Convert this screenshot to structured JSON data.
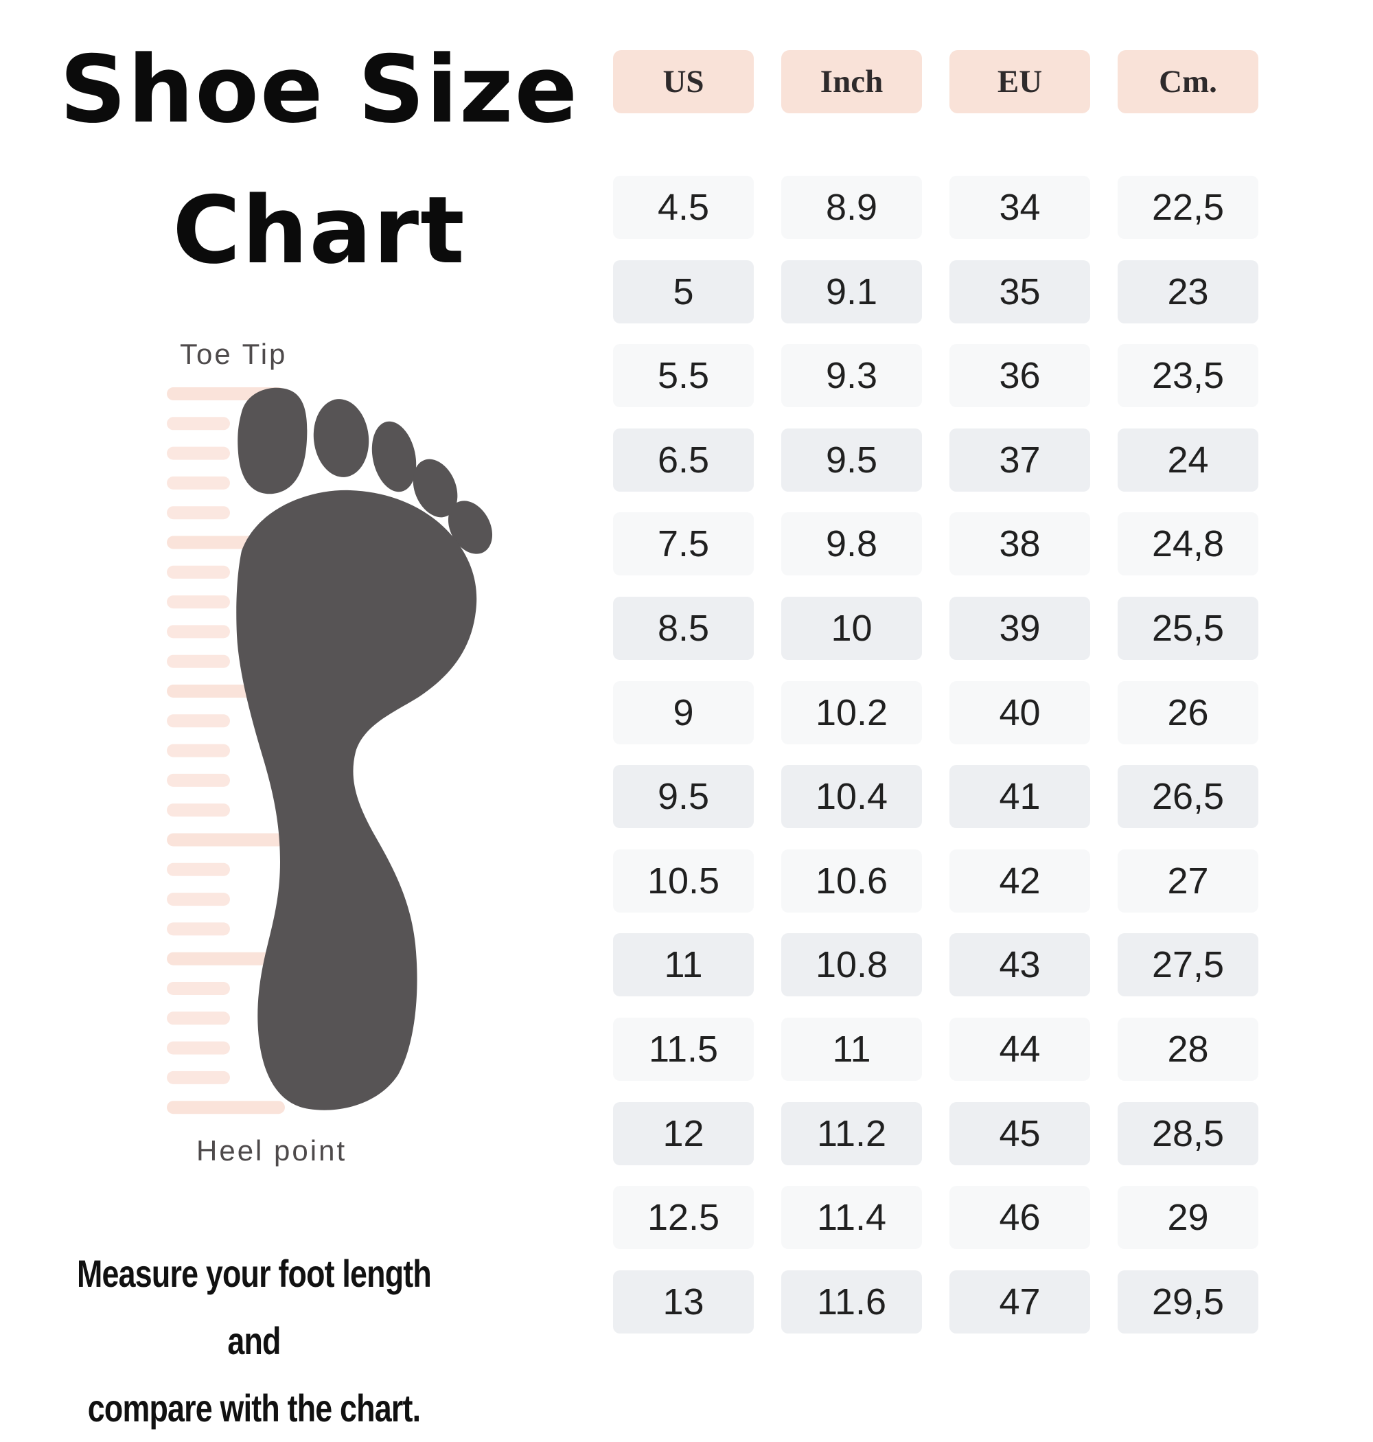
{
  "title": {
    "line1": "Shoe Size",
    "line2": "Chart"
  },
  "foot_diagram": {
    "toe_label": "Toe Tip",
    "heel_label": "Heel point"
  },
  "footer": {
    "line1": "Measure your foot length and",
    "line2": "compare with the chart."
  },
  "chart_data": {
    "type": "table",
    "title": "Shoe Size Chart",
    "columns": [
      "US",
      "Inch",
      "EU",
      "Cm."
    ],
    "rows": [
      [
        "4.5",
        "8.9",
        "34",
        "22,5"
      ],
      [
        "5",
        "9.1",
        "35",
        "23"
      ],
      [
        "5.5",
        "9.3",
        "36",
        "23,5"
      ],
      [
        "6.5",
        "9.5",
        "37",
        "24"
      ],
      [
        "7.5",
        "9.8",
        "38",
        "24,8"
      ],
      [
        "8.5",
        "10",
        "39",
        "25,5"
      ],
      [
        "9",
        "10.2",
        "40",
        "26"
      ],
      [
        "9.5",
        "10.4",
        "41",
        "26,5"
      ],
      [
        "10.5",
        "10.6",
        "42",
        "27"
      ],
      [
        "11",
        "10.8",
        "43",
        "27,5"
      ],
      [
        "11.5",
        "11",
        "44",
        "28"
      ],
      [
        "12",
        "11.2",
        "45",
        "28,5"
      ],
      [
        "12.5",
        "11.4",
        "46",
        "29"
      ],
      [
        "13",
        "11.6",
        "47",
        "29,5"
      ]
    ],
    "legend": "none",
    "grid": "off"
  },
  "colors": {
    "header_bg": "#f9e2d8",
    "row_light": "#f7f8f9",
    "row_dark": "#edeff2",
    "foot_gray": "#575455",
    "ruler_pink": "#fae3da",
    "title_black": "#0b0b0b",
    "label_gray": "#4e4a4b"
  }
}
